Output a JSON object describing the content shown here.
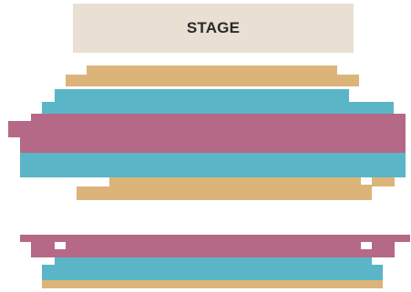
{
  "stage": {
    "label": "STAGE"
  },
  "colors": {
    "stage": "#e9dfd2",
    "tan": "#dcb47a",
    "teal": "#5ab6c6",
    "mauve": "#b56986",
    "background": "#ffffff"
  },
  "sections": {
    "upper": {
      "row_colors": [
        "tan",
        "tan",
        "teal",
        "teal",
        "mauve",
        "mauve",
        "mauve",
        "teal",
        "teal",
        "tan",
        "tan"
      ]
    },
    "lower": {
      "row_colors": [
        "mauve",
        "mauve",
        "teal",
        "teal",
        "tan"
      ]
    }
  }
}
